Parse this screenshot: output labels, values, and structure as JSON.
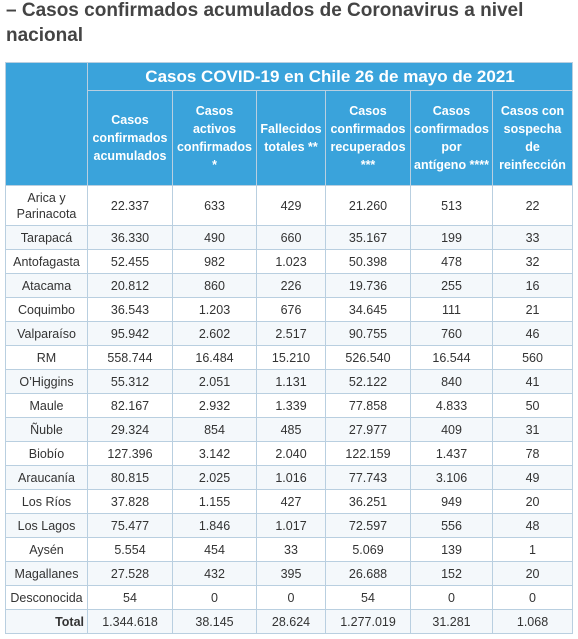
{
  "header": {
    "title": "– Casos confirmados acumulados de Coronavirus a nivel nacional"
  },
  "table": {
    "title": "Casos COVID-19 en Chile 26 de mayo de 2021",
    "columns": [
      "Casos confirmados acumulados",
      "Casos activos confirmados *",
      "Fallecidos totales **",
      "Casos confirmados recuperados ***",
      "Casos confirmados por antígeno ****",
      "Casos con sospecha de reinfección"
    ],
    "rows": [
      [
        "Arica y Parinacota",
        "22.337",
        "633",
        "429",
        "21.260",
        "513",
        "22"
      ],
      [
        "Tarapacá",
        "36.330",
        "490",
        "660",
        "35.167",
        "199",
        "33"
      ],
      [
        "Antofagasta",
        "52.455",
        "982",
        "1.023",
        "50.398",
        "478",
        "32"
      ],
      [
        "Atacama",
        "20.812",
        "860",
        "226",
        "19.736",
        "255",
        "16"
      ],
      [
        "Coquimbo",
        "36.543",
        "1.203",
        "676",
        "34.645",
        "111",
        "21"
      ],
      [
        "Valparaíso",
        "95.942",
        "2.602",
        "2.517",
        "90.755",
        "760",
        "46"
      ],
      [
        "RM",
        "558.744",
        "16.484",
        "15.210",
        "526.540",
        "16.544",
        "560"
      ],
      [
        "O’Higgins",
        "55.312",
        "2.051",
        "1.131",
        "52.122",
        "840",
        "41"
      ],
      [
        "Maule",
        "82.167",
        "2.932",
        "1.339",
        "77.858",
        "4.833",
        "50"
      ],
      [
        "Ñuble",
        "29.324",
        "854",
        "485",
        "27.977",
        "409",
        "31"
      ],
      [
        "Biobío",
        "127.396",
        "3.142",
        "2.040",
        "122.159",
        "1.437",
        "78"
      ],
      [
        "Araucanía",
        "80.815",
        "2.025",
        "1.016",
        "77.743",
        "3.106",
        "49"
      ],
      [
        "Los Ríos",
        "37.828",
        "1.155",
        "427",
        "36.251",
        "949",
        "20"
      ],
      [
        "Los Lagos",
        "75.477",
        "1.846",
        "1.017",
        "72.597",
        "556",
        "48"
      ],
      [
        "Aysén",
        "5.554",
        "454",
        "33",
        "5.069",
        "139",
        "1"
      ],
      [
        "Magallanes",
        "27.528",
        "432",
        "395",
        "26.688",
        "152",
        "20"
      ],
      [
        "Desconocida",
        "54",
        "0",
        "0",
        "54",
        "0",
        "0"
      ],
      [
        "Total",
        "1.344.618",
        "38.145",
        "28.624",
        "1.277.019",
        "31.281",
        "1.068"
      ]
    ]
  }
}
